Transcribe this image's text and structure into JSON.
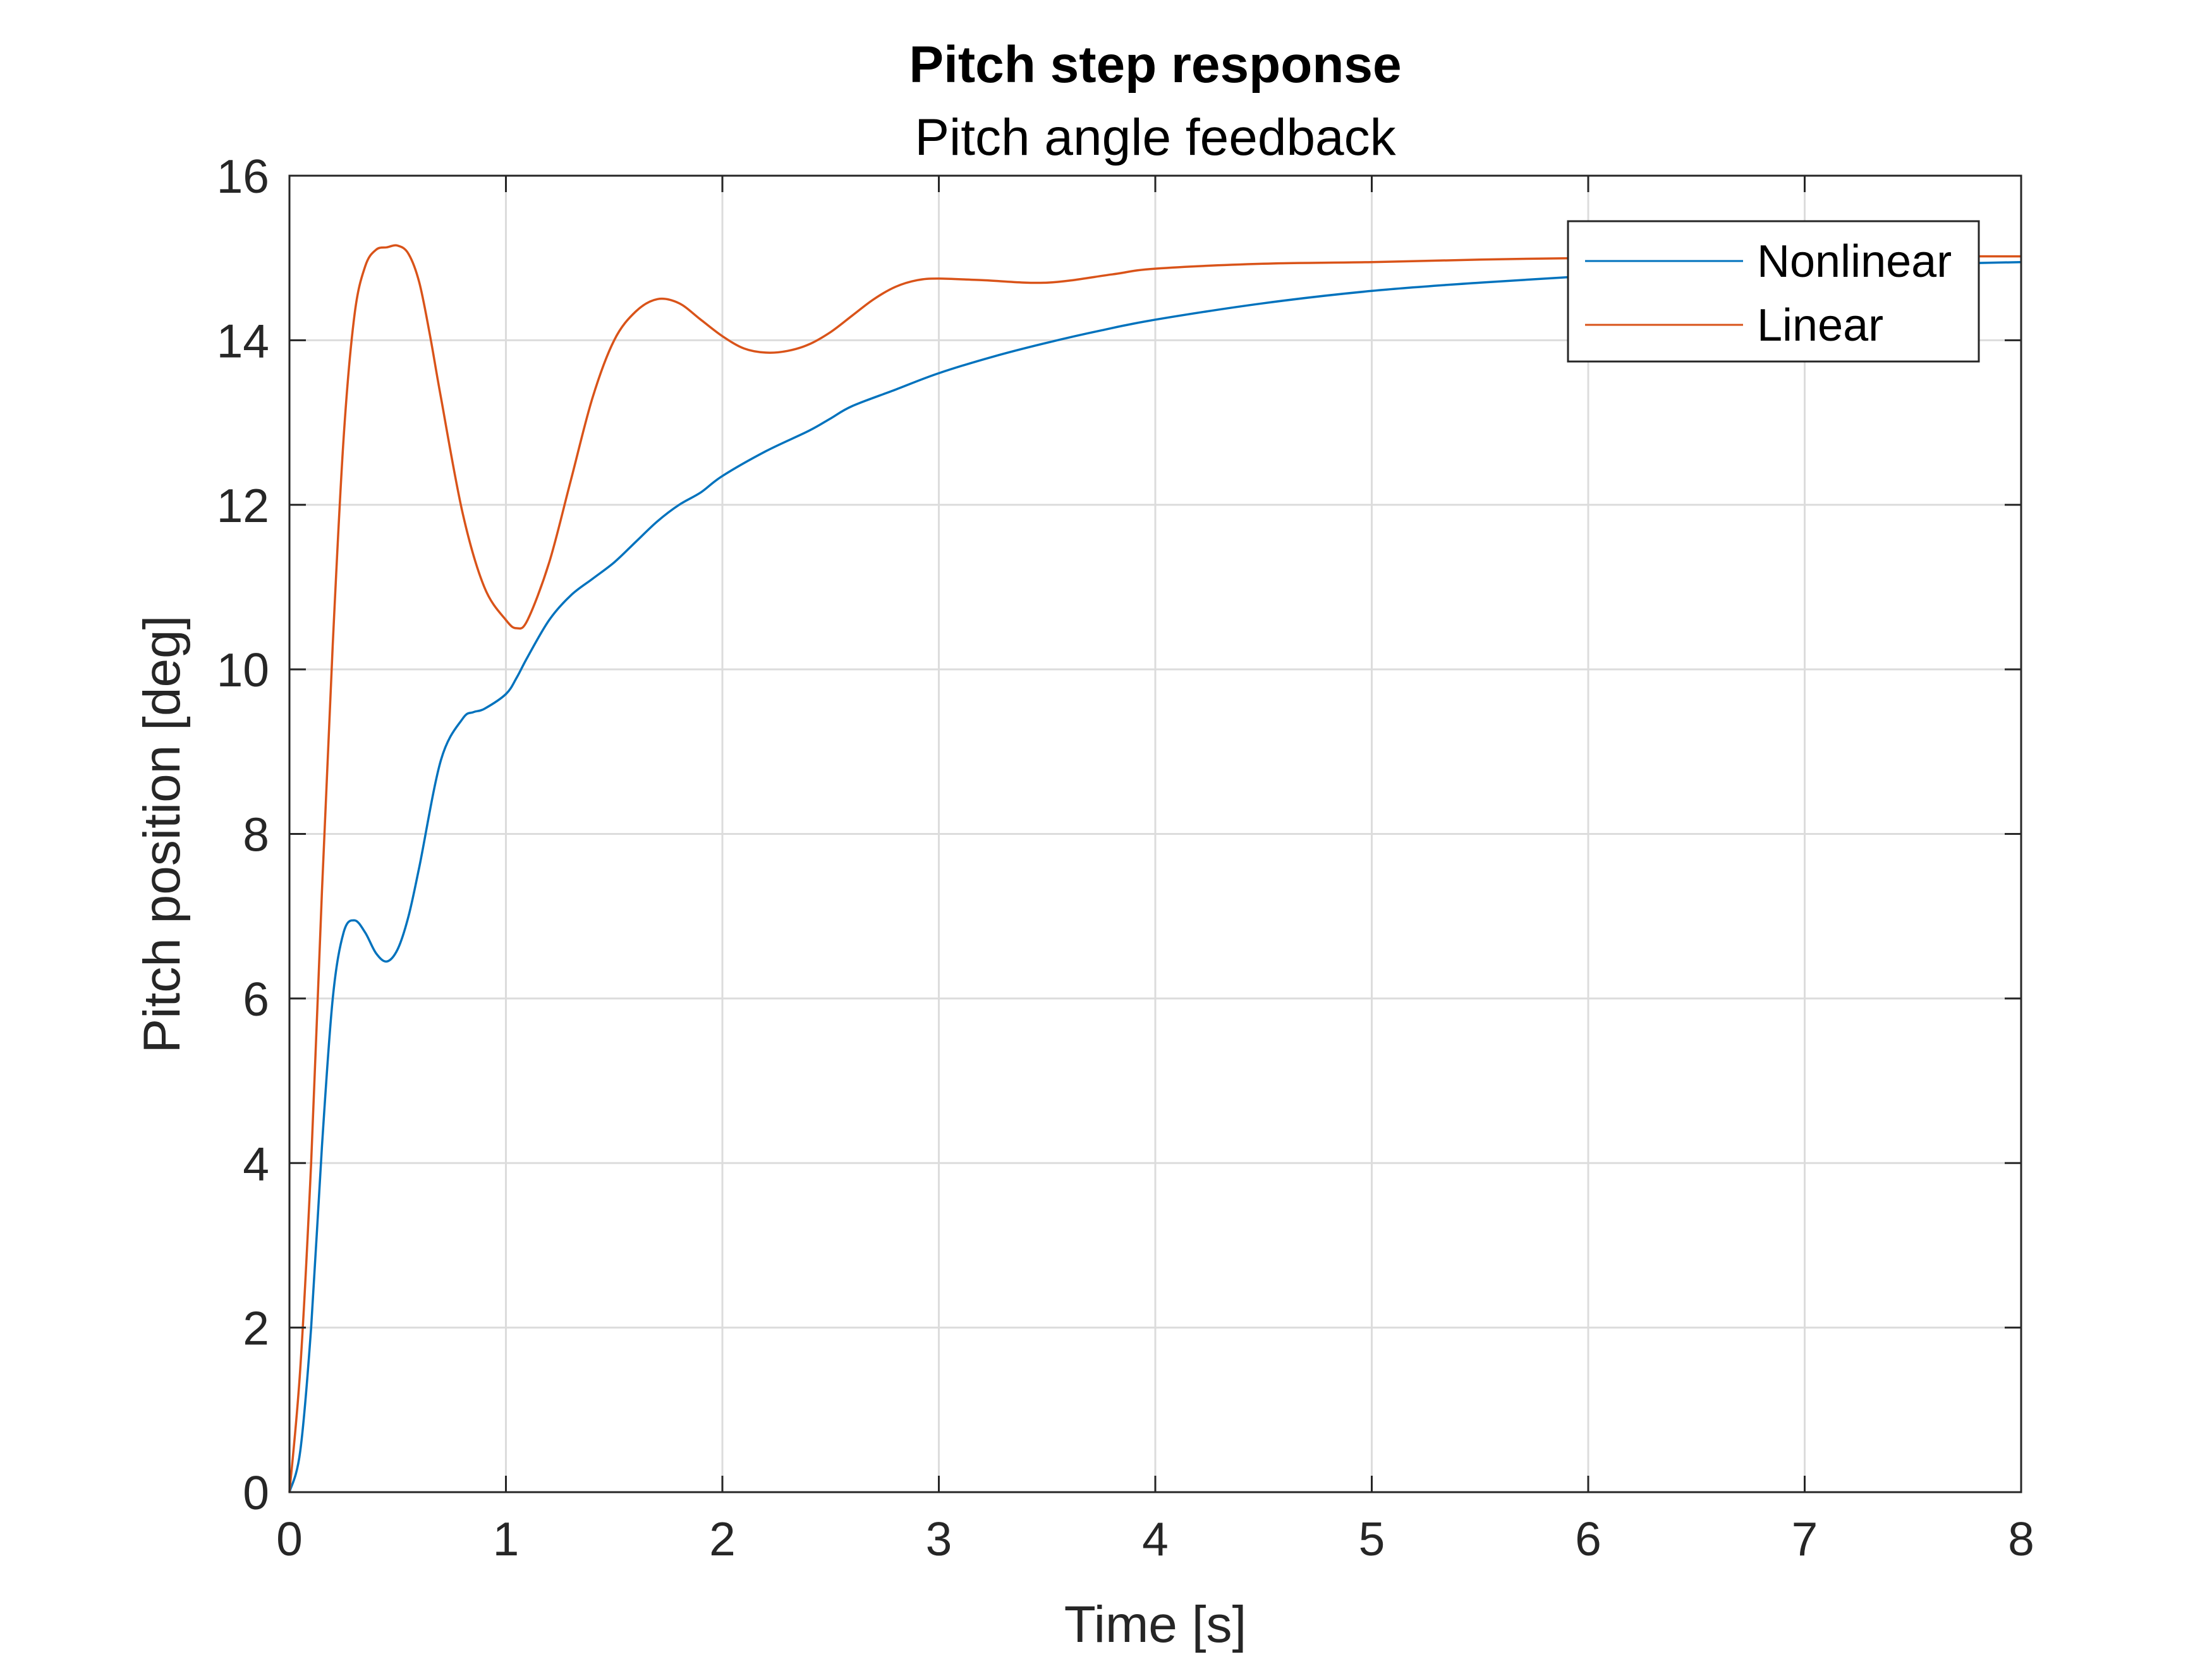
{
  "chart_data": {
    "type": "line",
    "title": "Pitch step response",
    "subtitle": "Pitch angle feedback",
    "xlabel": "Time [s]",
    "ylabel": "Pitch position [deg]",
    "xlim": [
      0,
      8
    ],
    "ylim": [
      0,
      16
    ],
    "xticks": [
      0,
      1,
      2,
      3,
      4,
      5,
      6,
      7,
      8
    ],
    "yticks": [
      0,
      2,
      4,
      6,
      8,
      10,
      12,
      14,
      16
    ],
    "xtick_labels": [
      "0",
      "1",
      "2",
      "3",
      "4",
      "5",
      "6",
      "7",
      "8"
    ],
    "ytick_labels": [
      "0",
      "2",
      "4",
      "6",
      "8",
      "10",
      "12",
      "14",
      "16"
    ],
    "grid": true,
    "legend_position": "top-right",
    "series": [
      {
        "name": "Nonlinear",
        "color": "#0072BD",
        "x": [
          0,
          0.05,
          0.1,
          0.15,
          0.2,
          0.25,
          0.3,
          0.35,
          0.4,
          0.45,
          0.5,
          0.55,
          0.6,
          0.7,
          0.8,
          0.85,
          0.9,
          1.0,
          1.05,
          1.1,
          1.2,
          1.3,
          1.4,
          1.5,
          1.6,
          1.7,
          1.8,
          1.9,
          2.0,
          2.2,
          2.4,
          2.5,
          2.6,
          2.8,
          3.0,
          3.25,
          3.5,
          3.75,
          4.0,
          4.5,
          5.0,
          5.5,
          6.0,
          6.5,
          7.0,
          7.5,
          8.0
        ],
        "y": [
          0,
          0.5,
          2.0,
          4.2,
          6.0,
          6.8,
          6.95,
          6.8,
          6.55,
          6.45,
          6.6,
          7.0,
          7.6,
          8.9,
          9.4,
          9.48,
          9.52,
          9.7,
          9.9,
          10.15,
          10.6,
          10.9,
          11.1,
          11.3,
          11.55,
          11.8,
          12.0,
          12.15,
          12.35,
          12.65,
          12.9,
          13.05,
          13.2,
          13.4,
          13.6,
          13.8,
          13.97,
          14.12,
          14.25,
          14.45,
          14.6,
          14.7,
          14.78,
          14.84,
          14.88,
          14.92,
          14.95
        ]
      },
      {
        "name": "Linear",
        "color": "#D95319",
        "x": [
          0,
          0.05,
          0.1,
          0.15,
          0.2,
          0.25,
          0.3,
          0.35,
          0.4,
          0.45,
          0.5,
          0.55,
          0.6,
          0.65,
          0.7,
          0.8,
          0.9,
          1.0,
          1.05,
          1.1,
          1.2,
          1.3,
          1.4,
          1.5,
          1.6,
          1.7,
          1.8,
          1.9,
          2.0,
          2.1,
          2.2,
          2.3,
          2.4,
          2.5,
          2.6,
          2.7,
          2.8,
          2.9,
          3.0,
          3.2,
          3.5,
          3.8,
          4.0,
          4.5,
          5.0,
          5.5,
          6.0,
          7.0,
          8.0
        ],
        "y": [
          0,
          1.5,
          4.0,
          7.3,
          10.3,
          12.8,
          14.3,
          14.9,
          15.1,
          15.13,
          15.15,
          15.05,
          14.7,
          14.05,
          13.3,
          11.9,
          11.0,
          10.6,
          10.5,
          10.6,
          11.3,
          12.3,
          13.3,
          14.0,
          14.35,
          14.5,
          14.45,
          14.25,
          14.05,
          13.9,
          13.85,
          13.87,
          13.95,
          14.1,
          14.3,
          14.5,
          14.65,
          14.73,
          14.75,
          14.73,
          14.7,
          14.8,
          14.87,
          14.93,
          14.95,
          14.98,
          15.0,
          15.02,
          15.02
        ]
      }
    ]
  }
}
